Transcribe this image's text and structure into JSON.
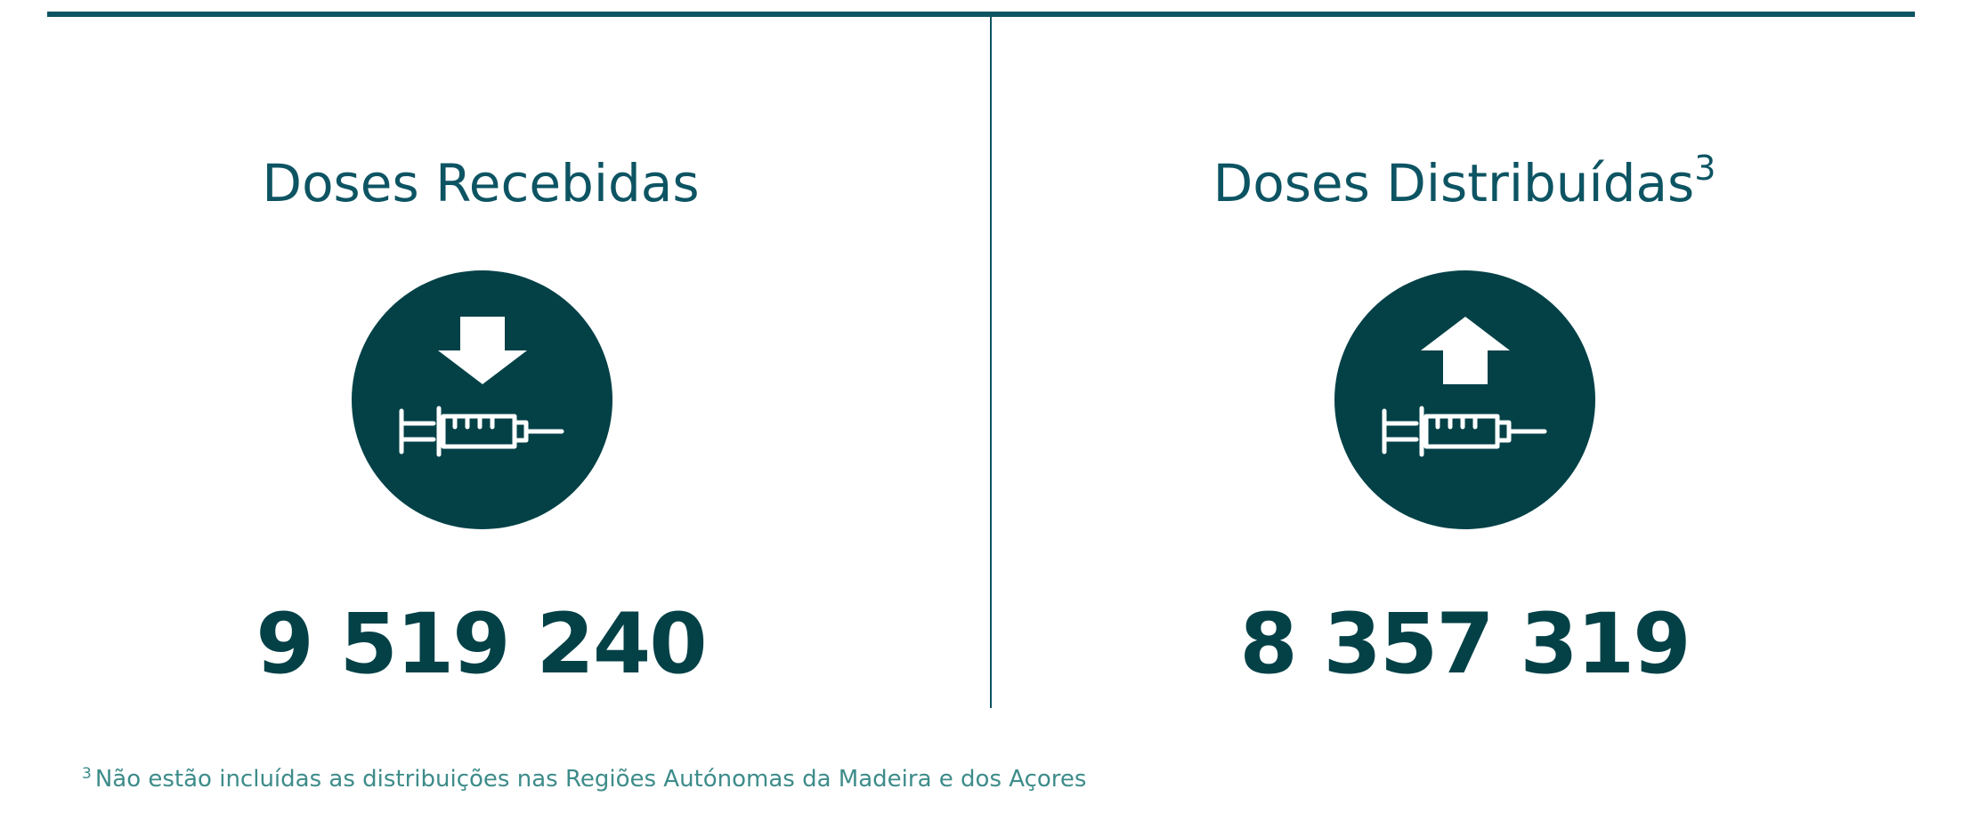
{
  "colors": {
    "rule": "#0d5463",
    "title": "#0d5463",
    "circle": "#034147",
    "number": "#034147",
    "footnote": "#3d8c8a"
  },
  "received": {
    "title": "Doses Recebidas",
    "icon": "arrow-down-syringe-icon",
    "value": "9 519 240"
  },
  "distributed": {
    "title": "Doses Distribuídas",
    "title_superscript": "3",
    "icon": "arrow-up-syringe-icon",
    "value": "8 357 319"
  },
  "footnote": {
    "marker": "3",
    "text": "Não estão incluídas as distribuições nas Regiões Autónomas da Madeira e dos Açores"
  }
}
